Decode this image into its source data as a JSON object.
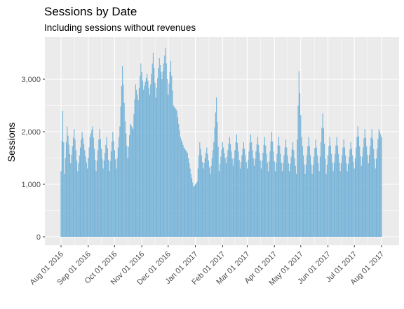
{
  "chart_data": {
    "type": "bar",
    "title": "Sessions by Date",
    "subtitle": "Including sessions without revenues",
    "xlabel": "",
    "ylabel": "Sessions",
    "x_range": [
      "2016-08-01",
      "2017-08-01"
    ],
    "ylim": [
      0,
      3600
    ],
    "y_ticks": [
      0,
      1000,
      2000,
      3000
    ],
    "y_tick_labels": [
      "0",
      "1,000",
      "2,000",
      "3,000"
    ],
    "x_tick_labels": [
      "Aug 01 2016",
      "Sep 01 2016",
      "Oct 01 2016",
      "Nov 01 2016",
      "Dec 01 2016",
      "Jan 01 2017",
      "Feb 01 2017",
      "Mar 01 2017",
      "Apr 01 2017",
      "May 01 2017",
      "Jun 01 2017",
      "Jul 01 2017",
      "Aug 01 2017"
    ],
    "bar_color": "#6baed6",
    "panel_background": "#ebebeb",
    "grid_color": "#ffffff",
    "grid": true,
    "legend": "none",
    "anchor_points": [
      [
        "2016-08-01",
        1250
      ],
      [
        "2016-08-03",
        2400
      ],
      [
        "2016-08-05",
        1200
      ],
      [
        "2016-08-08",
        2100
      ],
      [
        "2016-08-12",
        1400
      ],
      [
        "2016-08-16",
        2050
      ],
      [
        "2016-08-20",
        1250
      ],
      [
        "2016-08-25",
        2000
      ],
      [
        "2016-08-31",
        1300
      ],
      [
        "2016-09-03",
        1900
      ],
      [
        "2016-09-06",
        2100
      ],
      [
        "2016-09-10",
        1250
      ],
      [
        "2016-09-14",
        2050
      ],
      [
        "2016-09-18",
        1300
      ],
      [
        "2016-09-22",
        1900
      ],
      [
        "2016-09-25",
        1250
      ],
      [
        "2016-09-29",
        2000
      ],
      [
        "2016-10-03",
        1300
      ],
      [
        "2016-10-07",
        2100
      ],
      [
        "2016-10-10",
        3250
      ],
      [
        "2016-10-13",
        2200
      ],
      [
        "2016-10-16",
        1500
      ],
      [
        "2016-10-19",
        2150
      ],
      [
        "2016-10-22",
        2050
      ],
      [
        "2016-10-25",
        2900
      ],
      [
        "2016-10-28",
        2600
      ],
      [
        "2016-10-31",
        3300
      ],
      [
        "2016-11-03",
        2800
      ],
      [
        "2016-11-07",
        3100
      ],
      [
        "2016-11-10",
        2700
      ],
      [
        "2016-11-14",
        3500
      ],
      [
        "2016-11-17",
        2650
      ],
      [
        "2016-11-21",
        3400
      ],
      [
        "2016-11-24",
        3000
      ],
      [
        "2016-11-28",
        3600
      ],
      [
        "2016-12-01",
        2700
      ],
      [
        "2016-12-04",
        3350
      ],
      [
        "2016-12-07",
        2500
      ],
      [
        "2016-12-11",
        2400
      ],
      [
        "2016-12-15",
        1900
      ],
      [
        "2016-12-19",
        1700
      ],
      [
        "2016-12-23",
        1600
      ],
      [
        "2016-12-27",
        1200
      ],
      [
        "2016-12-30",
        950
      ],
      [
        "2017-01-03",
        1050
      ],
      [
        "2017-01-06",
        1800
      ],
      [
        "2017-01-10",
        1300
      ],
      [
        "2017-01-14",
        1700
      ],
      [
        "2017-01-18",
        1200
      ],
      [
        "2017-01-22",
        1800
      ],
      [
        "2017-01-25",
        2650
      ],
      [
        "2017-01-28",
        1250
      ],
      [
        "2017-02-01",
        1800
      ],
      [
        "2017-02-05",
        1400
      ],
      [
        "2017-02-09",
        1900
      ],
      [
        "2017-02-13",
        1350
      ],
      [
        "2017-02-17",
        1950
      ],
      [
        "2017-02-21",
        1300
      ],
      [
        "2017-02-25",
        1800
      ],
      [
        "2017-03-01",
        1300
      ],
      [
        "2017-03-05",
        1950
      ],
      [
        "2017-03-09",
        1350
      ],
      [
        "2017-03-13",
        1900
      ],
      [
        "2017-03-17",
        1300
      ],
      [
        "2017-03-21",
        1900
      ],
      [
        "2017-03-25",
        1250
      ],
      [
        "2017-03-29",
        2000
      ],
      [
        "2017-04-02",
        1250
      ],
      [
        "2017-04-06",
        1900
      ],
      [
        "2017-04-10",
        1250
      ],
      [
        "2017-04-14",
        1850
      ],
      [
        "2017-04-18",
        1250
      ],
      [
        "2017-04-22",
        1800
      ],
      [
        "2017-04-26",
        1200
      ],
      [
        "2017-04-29",
        3150
      ],
      [
        "2017-05-02",
        1900
      ],
      [
        "2017-05-06",
        1200
      ],
      [
        "2017-05-10",
        1900
      ],
      [
        "2017-05-14",
        1200
      ],
      [
        "2017-05-18",
        1850
      ],
      [
        "2017-05-22",
        1250
      ],
      [
        "2017-05-26",
        2350
      ],
      [
        "2017-05-30",
        1200
      ],
      [
        "2017-06-03",
        1900
      ],
      [
        "2017-06-07",
        1250
      ],
      [
        "2017-06-11",
        1900
      ],
      [
        "2017-06-15",
        1250
      ],
      [
        "2017-06-19",
        1850
      ],
      [
        "2017-06-23",
        1250
      ],
      [
        "2017-06-27",
        1800
      ],
      [
        "2017-07-01",
        1300
      ],
      [
        "2017-07-05",
        2100
      ],
      [
        "2017-07-09",
        1350
      ],
      [
        "2017-07-13",
        2050
      ],
      [
        "2017-07-17",
        1400
      ],
      [
        "2017-07-21",
        2050
      ],
      [
        "2017-07-25",
        1300
      ],
      [
        "2017-07-29",
        2050
      ],
      [
        "2017-08-01",
        1900
      ]
    ]
  }
}
